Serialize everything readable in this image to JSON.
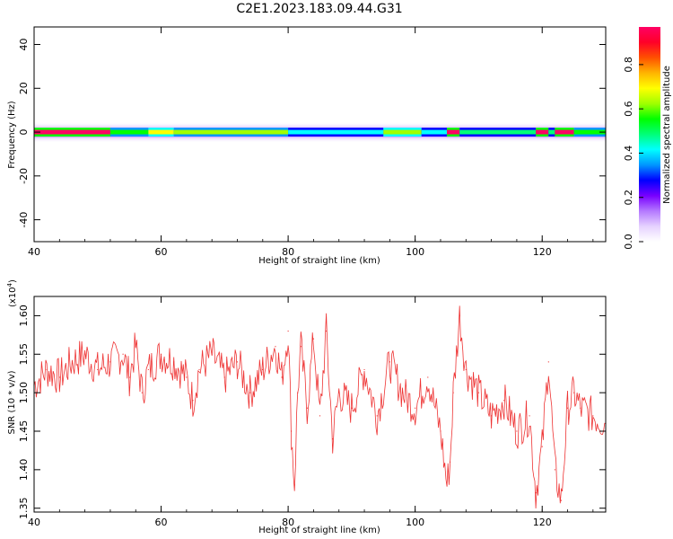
{
  "figure": {
    "title": "C2E1.2023.183.09.44.G31"
  },
  "chart_data": [
    {
      "type": "heatmap",
      "xlabel": "Height of straight line (km)",
      "ylabel": "Frequency (Hz)",
      "xlim": [
        40,
        130
      ],
      "ylim": [
        -50,
        48
      ],
      "xticks": [
        "40",
        "60",
        "80",
        "100",
        "120"
      ],
      "yticks": [
        "-40",
        "-20",
        "0",
        "20",
        "40"
      ],
      "colorbar": {
        "label": "Normalized spectral amplitude",
        "ticks": [
          "0.0",
          "0.2",
          "0.4",
          "0.6",
          "0.8"
        ],
        "range": [
          0,
          0.97
        ],
        "colormap": [
          "#ffffff",
          "#e6d2ff",
          "#b478ff",
          "#7800ff",
          "#0000ff",
          "#0096ff",
          "#00ffff",
          "#00ff78",
          "#00ff00",
          "#a0ff00",
          "#ffff00",
          "#ffb400",
          "#ff5000",
          "#ff0028",
          "#ff0064"
        ]
      },
      "band_segments": [
        {
          "x": [
            40,
            52
          ],
          "amplitude": 0.95
        },
        {
          "x": [
            52,
            58
          ],
          "amplitude": 0.55
        },
        {
          "x": [
            58,
            62
          ],
          "amplitude": 0.7
        },
        {
          "x": [
            62,
            80
          ],
          "amplitude": 0.6
        },
        {
          "x": [
            80,
            95
          ],
          "amplitude": 0.45
        },
        {
          "x": [
            95,
            101
          ],
          "amplitude": 0.65
        },
        {
          "x": [
            101,
            105
          ],
          "amplitude": 0.45
        },
        {
          "x": [
            105,
            107
          ],
          "amplitude": 0.95
        },
        {
          "x": [
            107,
            119
          ],
          "amplitude": 0.5
        },
        {
          "x": [
            119,
            121
          ],
          "amplitude": 0.95
        },
        {
          "x": [
            121,
            122
          ],
          "amplitude": 0.5
        },
        {
          "x": [
            122,
            125
          ],
          "amplitude": 0.95
        },
        {
          "x": [
            125,
            130
          ],
          "amplitude": 0.55
        }
      ]
    },
    {
      "type": "line",
      "xlabel": "Height of straight line (km)",
      "ylabel": "SNR (10 * v/v)",
      "scale_label": "(x10",
      "scale_exponent": "4",
      "scale_close": ")",
      "xlim": [
        40,
        130
      ],
      "ylim": [
        1.345,
        1.625
      ],
      "xticks": [
        "40",
        "60",
        "80",
        "100",
        "120"
      ],
      "yticks": [
        "1.35",
        "1.40",
        "1.45",
        "1.50",
        "1.55",
        "1.60"
      ],
      "series": [
        {
          "color": "#ee3333",
          "x": [
            40,
            42,
            44,
            46,
            48,
            50,
            52,
            54,
            55,
            56,
            57,
            58,
            60,
            62,
            64,
            65,
            66,
            68,
            70,
            72,
            74,
            76,
            78,
            79,
            80,
            80.5,
            81,
            81.5,
            82,
            83,
            84,
            85,
            86,
            87,
            88,
            90,
            92,
            94,
            96,
            98,
            100,
            102,
            104,
            105,
            105.5,
            106,
            107,
            108,
            110,
            112,
            114,
            116,
            118,
            119,
            120,
            121,
            122,
            123,
            124,
            125,
            126,
            128,
            130
          ],
          "y": [
            1.51,
            1.53,
            1.52,
            1.54,
            1.55,
            1.53,
            1.54,
            1.55,
            1.52,
            1.56,
            1.5,
            1.53,
            1.55,
            1.54,
            1.52,
            1.49,
            1.53,
            1.55,
            1.52,
            1.54,
            1.5,
            1.53,
            1.56,
            1.52,
            1.58,
            1.45,
            1.38,
            1.5,
            1.56,
            1.48,
            1.57,
            1.47,
            1.58,
            1.44,
            1.5,
            1.48,
            1.53,
            1.47,
            1.54,
            1.5,
            1.48,
            1.52,
            1.45,
            1.38,
            1.41,
            1.5,
            1.6,
            1.53,
            1.5,
            1.47,
            1.49,
            1.45,
            1.47,
            1.37,
            1.43,
            1.54,
            1.4,
            1.36,
            1.48,
            1.5,
            1.48,
            1.47,
            1.46
          ]
        }
      ]
    }
  ]
}
